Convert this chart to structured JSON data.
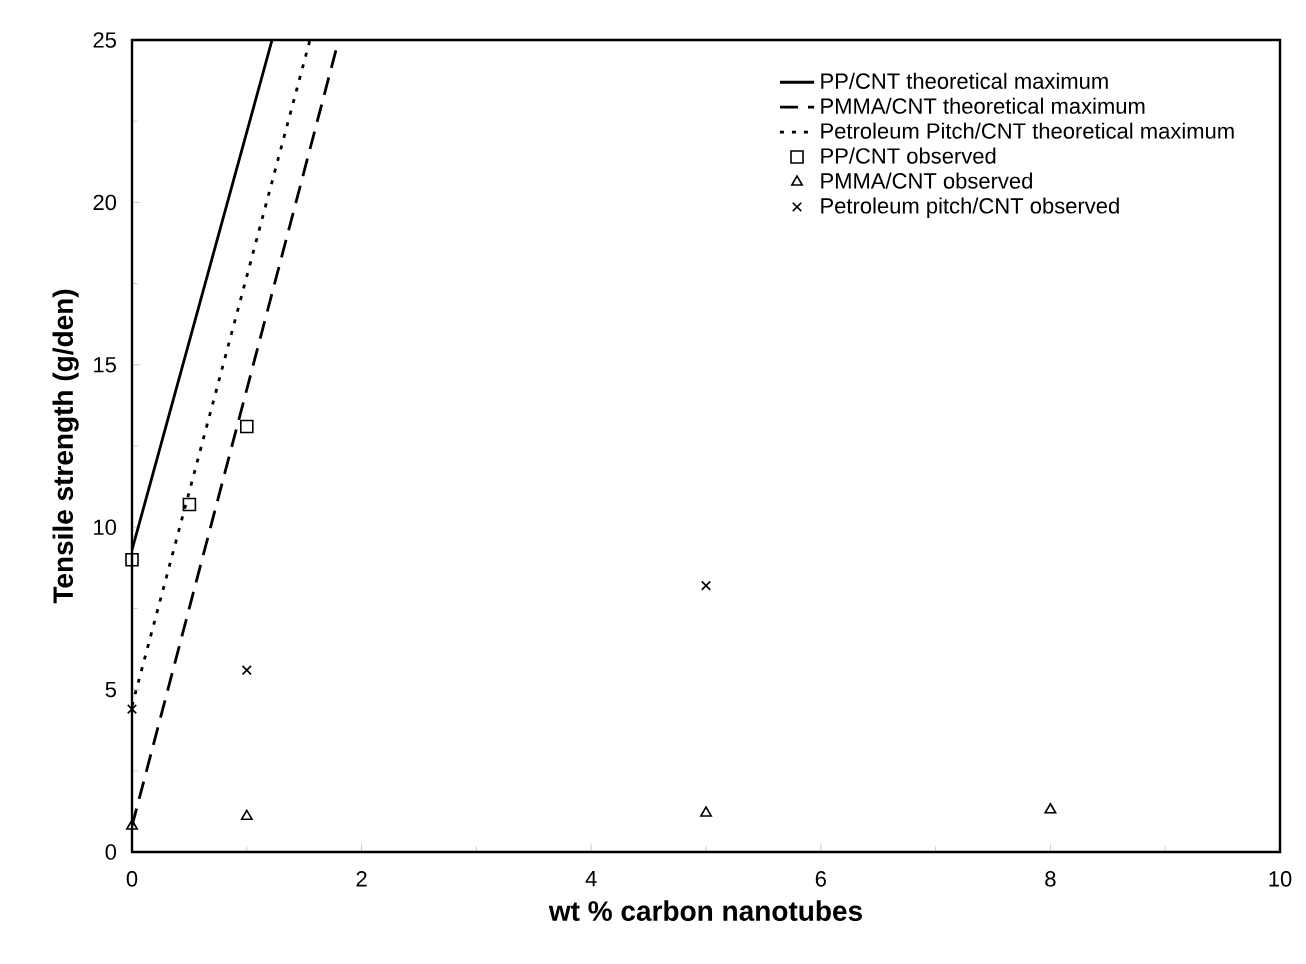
{
  "chart_data": {
    "type": "scatter",
    "xlabel": "wt % carbon nanotubes",
    "ylabel": "Tensile strength (g/den)",
    "xlim": [
      0,
      10
    ],
    "ylim": [
      0,
      25
    ],
    "xticks": [
      0,
      2,
      4,
      6,
      8,
      10
    ],
    "yticks": [
      0,
      5,
      10,
      15,
      20,
      25
    ],
    "grid": false,
    "legend": "top right",
    "series": [
      {
        "name": "PP/CNT theoretical maximum",
        "type": "line",
        "line_style": "solid",
        "marker": "none",
        "color": "#000000",
        "x": [
          0,
          1.22
        ],
        "values": [
          9.3,
          25
        ]
      },
      {
        "name": "PMMA/CNT theoretical maximum",
        "type": "line",
        "line_style": "dashed",
        "marker": "none",
        "color": "#000000",
        "x": [
          0,
          1.8
        ],
        "values": [
          0.8,
          25
        ]
      },
      {
        "name": "Petroleum Pitch/CNT theoretical maximum",
        "type": "line",
        "line_style": "dotted",
        "marker": "none",
        "color": "#000000",
        "x": [
          0,
          1.55
        ],
        "values": [
          4.5,
          25
        ]
      },
      {
        "name": "PP/CNT observed",
        "marker": "square",
        "color": "#000000",
        "x": [
          0,
          0.5,
          1
        ],
        "values": [
          9,
          10.7,
          13.1
        ]
      },
      {
        "name": "PMMA/CNT observed",
        "marker": "triangle",
        "color": "#000000",
        "x": [
          0,
          1,
          5,
          8
        ],
        "values": [
          0.8,
          1.1,
          1.2,
          1.3
        ]
      },
      {
        "name": "Petroleum pitch/CNT observed",
        "marker": "cross",
        "color": "#000000",
        "x": [
          0,
          1,
          5
        ],
        "values": [
          4.4,
          5.6,
          8.2
        ]
      }
    ]
  }
}
